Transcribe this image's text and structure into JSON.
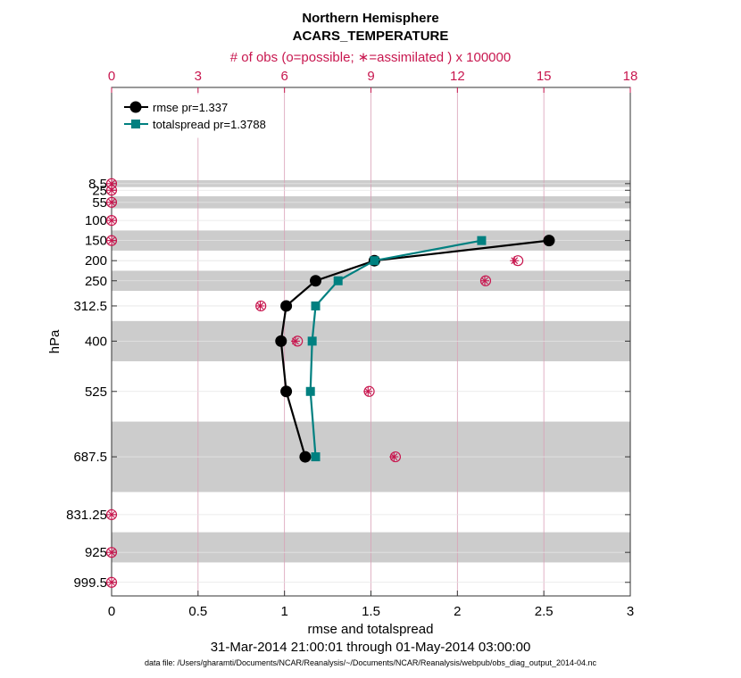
{
  "chart_data": {
    "type": "line",
    "title": "Northern Hemisphere",
    "subtitle": "ACARS_TEMPERATURE",
    "top_axis_label": "# of obs (o=possible; ∗=assimilated ) x 100000",
    "xlabel": "rmse and totalspread",
    "ylabel": "hPa",
    "date_range": "31-Mar-2014 21:00:01 through 01-May-2014 03:00:00",
    "footnote": "data file: /Users/gharamti/Documents/NCAR/Reanalysis/~/Documents/NCAR/Reanalysis/webpub/obs_diag_output_2014-04.nc",
    "xlim": [
      0,
      3
    ],
    "x_ticks": [
      "0",
      "0.5",
      "1",
      "1.5",
      "2",
      "2.5",
      "3"
    ],
    "x_tick_values": [
      0,
      0.5,
      1,
      1.5,
      2,
      2.5,
      3
    ],
    "top_xlim": [
      0,
      18
    ],
    "top_ticks": [
      "0",
      "3",
      "6",
      "9",
      "12",
      "15",
      "18"
    ],
    "top_tick_values": [
      0,
      3,
      6,
      9,
      12,
      15,
      18
    ],
    "y_ticks": [
      "8.5",
      "25",
      "55",
      "100",
      "150",
      "200",
      "250",
      "312.5",
      "400",
      "525",
      "687.5",
      "831.25",
      "925",
      "999.5"
    ],
    "y_tick_values": [
      8.5,
      25,
      55,
      100,
      150,
      200,
      250,
      312.5,
      400,
      525,
      687.5,
      831.25,
      925,
      999.5
    ],
    "ylim_pixel_domain": [
      0,
      1000
    ],
    "shaded_layers": [
      [
        0,
        17
      ],
      [
        40,
        70
      ],
      [
        125,
        175
      ],
      [
        225,
        275
      ],
      [
        350,
        450
      ],
      [
        600,
        775
      ],
      [
        875,
        950
      ]
    ],
    "series": [
      {
        "name": "rmse pr=1.337",
        "color": "#000000",
        "marker": "circle",
        "levels": [
          150,
          200,
          250,
          312.5,
          400,
          525,
          687.5
        ],
        "values": [
          2.53,
          1.52,
          1.18,
          1.01,
          0.98,
          1.01,
          1.12
        ]
      },
      {
        "name": "totalspread pr=1.3788",
        "color": "#008080",
        "marker": "square",
        "levels": [
          150,
          200,
          250,
          312.5,
          400,
          525,
          687.5
        ],
        "values": [
          2.14,
          1.52,
          1.31,
          1.18,
          1.16,
          1.15,
          1.18
        ]
      }
    ],
    "obs_counts": {
      "color": "#c8174f",
      "levels": [
        8.5,
        25,
        55,
        100,
        150,
        200,
        250,
        312.5,
        400,
        525,
        687.5,
        831.25,
        925,
        999.5
      ],
      "possible": [
        0,
        0,
        0,
        0,
        0,
        14.1,
        12.98,
        5.18,
        6.45,
        8.94,
        9.85,
        0,
        0,
        0
      ],
      "assimilated": [
        0,
        0,
        0,
        0,
        0,
        13.98,
        12.95,
        5.16,
        6.38,
        8.9,
        9.8,
        0,
        0,
        0
      ]
    }
  }
}
